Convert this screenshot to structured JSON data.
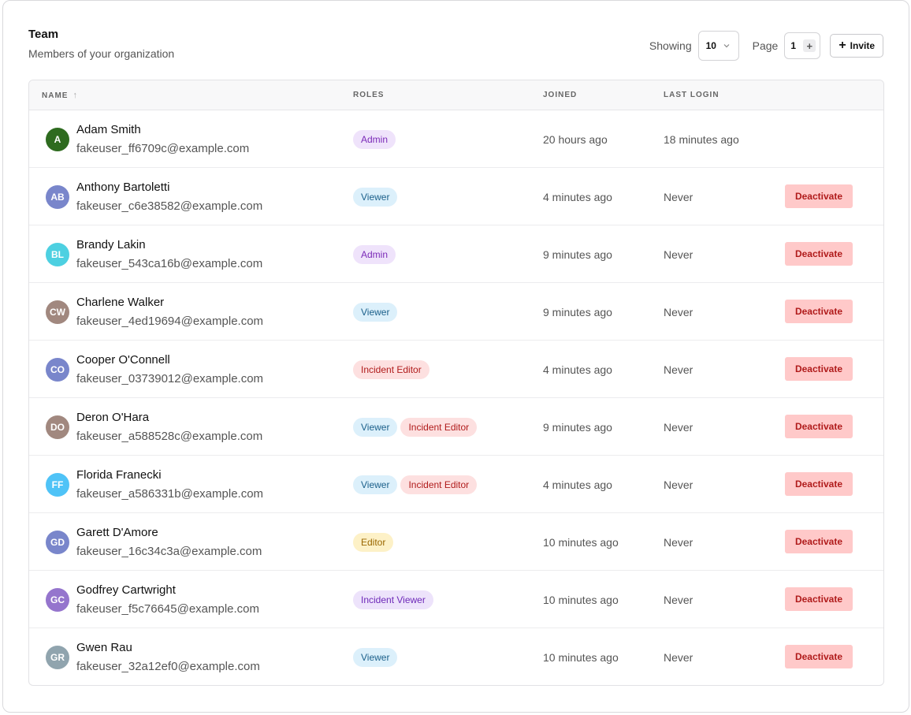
{
  "header": {
    "title": "Team",
    "subtitle": "Members of your organization"
  },
  "controls": {
    "showing_label": "Showing",
    "page_size": "10",
    "page_label": "Page",
    "page_number": "1",
    "invite_label": "Invite"
  },
  "columns": {
    "name": "NAME",
    "roles": "ROLES",
    "joined": "JOINED",
    "last_login": "LAST LOGIN"
  },
  "action_label": "Deactivate",
  "role_colors": {
    "Admin": {
      "bg": "#efe3fb",
      "fg": "#7b2ab8"
    },
    "Viewer": {
      "bg": "#dcf0fb",
      "fg": "#1a5f8a"
    },
    "Incident Editor": {
      "bg": "#fde0e0",
      "fg": "#b01b1b"
    },
    "Editor": {
      "bg": "#fdf1c7",
      "fg": "#9a6700"
    },
    "Incident Viewer": {
      "bg": "#ede3fb",
      "fg": "#6d28b8"
    }
  },
  "users": [
    {
      "initials": "A",
      "avatar_color": "#2e6b1f",
      "name": "Adam Smith",
      "email": "fakeuser_ff6709c@example.com",
      "roles": [
        "Admin"
      ],
      "joined": "20 hours ago",
      "last_login": "18 minutes ago",
      "can_deactivate": false
    },
    {
      "initials": "AB",
      "avatar_color": "#7986cb",
      "name": "Anthony Bartoletti",
      "email": "fakeuser_c6e38582@example.com",
      "roles": [
        "Viewer"
      ],
      "joined": "4 minutes ago",
      "last_login": "Never",
      "can_deactivate": true
    },
    {
      "initials": "BL",
      "avatar_color": "#4dd0e1",
      "name": "Brandy Lakin",
      "email": "fakeuser_543ca16b@example.com",
      "roles": [
        "Admin"
      ],
      "joined": "9 minutes ago",
      "last_login": "Never",
      "can_deactivate": true
    },
    {
      "initials": "CW",
      "avatar_color": "#a1887f",
      "name": "Charlene Walker",
      "email": "fakeuser_4ed19694@example.com",
      "roles": [
        "Viewer"
      ],
      "joined": "9 minutes ago",
      "last_login": "Never",
      "can_deactivate": true
    },
    {
      "initials": "CO",
      "avatar_color": "#7986cb",
      "name": "Cooper O'Connell",
      "email": "fakeuser_03739012@example.com",
      "roles": [
        "Incident Editor"
      ],
      "joined": "4 minutes ago",
      "last_login": "Never",
      "can_deactivate": true
    },
    {
      "initials": "DO",
      "avatar_color": "#a1887f",
      "name": "Deron O'Hara",
      "email": "fakeuser_a588528c@example.com",
      "roles": [
        "Viewer",
        "Incident Editor"
      ],
      "joined": "9 minutes ago",
      "last_login": "Never",
      "can_deactivate": true
    },
    {
      "initials": "FF",
      "avatar_color": "#4fc3f7",
      "name": "Florida Franecki",
      "email": "fakeuser_a586331b@example.com",
      "roles": [
        "Viewer",
        "Incident Editor"
      ],
      "joined": "4 minutes ago",
      "last_login": "Never",
      "can_deactivate": true
    },
    {
      "initials": "GD",
      "avatar_color": "#7986cb",
      "name": "Garett D'Amore",
      "email": "fakeuser_16c34c3a@example.com",
      "roles": [
        "Editor"
      ],
      "joined": "10 minutes ago",
      "last_login": "Never",
      "can_deactivate": true
    },
    {
      "initials": "GC",
      "avatar_color": "#9575cd",
      "name": "Godfrey Cartwright",
      "email": "fakeuser_f5c76645@example.com",
      "roles": [
        "Incident Viewer"
      ],
      "joined": "10 minutes ago",
      "last_login": "Never",
      "can_deactivate": true
    },
    {
      "initials": "GR",
      "avatar_color": "#90a4ae",
      "name": "Gwen Rau",
      "email": "fakeuser_32a12ef0@example.com",
      "roles": [
        "Viewer"
      ],
      "joined": "10 minutes ago",
      "last_login": "Never",
      "can_deactivate": true
    }
  ]
}
